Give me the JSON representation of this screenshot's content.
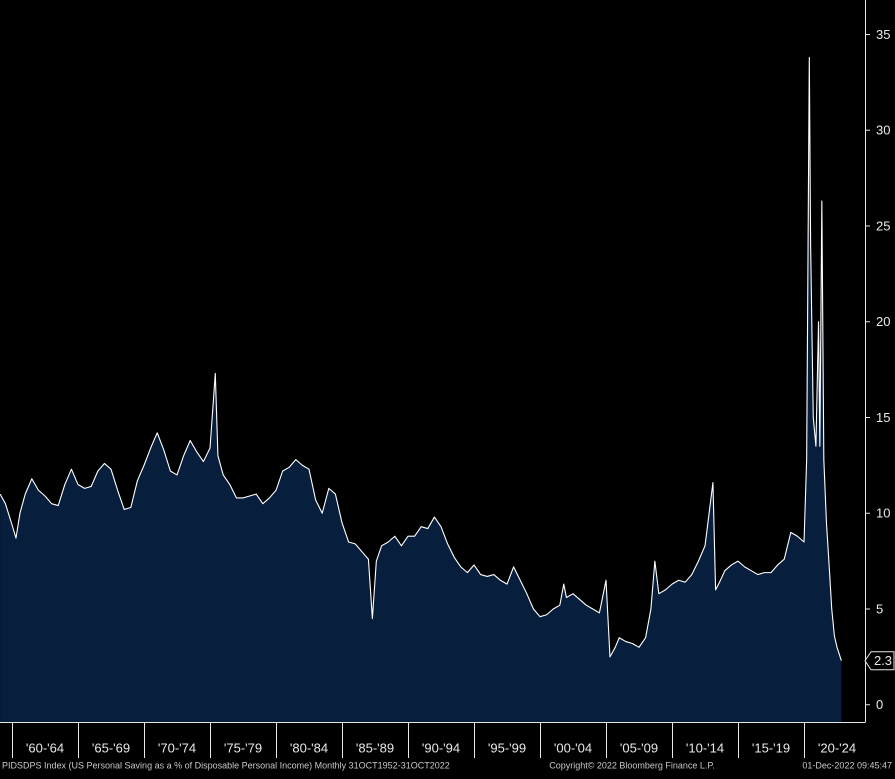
{
  "chart_data": {
    "type": "area",
    "x": [
      1959.1,
      1959.5,
      1960.0,
      1960.3,
      1960.6,
      1961.0,
      1961.5,
      1962.0,
      1962.5,
      1963.0,
      1963.5,
      1964.0,
      1964.5,
      1965.0,
      1965.5,
      1966.0,
      1966.5,
      1967.0,
      1967.5,
      1968.0,
      1968.5,
      1969.0,
      1969.5,
      1970.0,
      1970.5,
      1971.0,
      1971.5,
      1972.0,
      1972.5,
      1973.0,
      1973.5,
      1974.0,
      1974.5,
      1975.0,
      1975.4,
      1975.6,
      1976.0,
      1976.5,
      1977.0,
      1977.5,
      1978.0,
      1978.5,
      1979.0,
      1979.5,
      1980.0,
      1980.5,
      1981.0,
      1981.5,
      1982.0,
      1982.5,
      1983.0,
      1983.5,
      1984.0,
      1984.5,
      1985.0,
      1985.5,
      1986.0,
      1986.5,
      1987.0,
      1987.3,
      1987.6,
      1988.0,
      1988.5,
      1989.0,
      1989.5,
      1990.0,
      1990.5,
      1991.0,
      1991.5,
      1992.0,
      1992.5,
      1993.0,
      1993.5,
      1994.0,
      1994.5,
      1995.0,
      1995.5,
      1996.0,
      1996.5,
      1997.0,
      1997.5,
      1998.0,
      1998.5,
      1999.0,
      1999.5,
      2000.0,
      2000.5,
      2001.0,
      2001.5,
      2001.8,
      2002.0,
      2002.5,
      2003.0,
      2003.5,
      2004.0,
      2004.5,
      2005.0,
      2005.3,
      2005.7,
      2006.0,
      2006.5,
      2007.0,
      2007.5,
      2008.0,
      2008.4,
      2008.7,
      2009.0,
      2009.5,
      2010.0,
      2010.5,
      2011.0,
      2011.5,
      2012.0,
      2012.5,
      2013.1,
      2013.3,
      2013.6,
      2014.0,
      2014.5,
      2015.0,
      2015.5,
      2016.0,
      2016.5,
      2017.0,
      2017.5,
      2018.0,
      2018.5,
      2019.0,
      2019.5,
      2020.0,
      2020.2,
      2020.4,
      2020.5,
      2020.7,
      2020.9,
      2021.1,
      2021.2,
      2021.35,
      2021.5,
      2021.7,
      2021.9,
      2022.1,
      2022.3,
      2022.5,
      2022.83
    ],
    "values": [
      11.0,
      10.5,
      9.4,
      8.7,
      10.0,
      11.0,
      11.8,
      11.2,
      10.9,
      10.5,
      10.4,
      11.5,
      12.3,
      11.5,
      11.3,
      11.4,
      12.2,
      12.6,
      12.3,
      11.2,
      10.2,
      10.3,
      11.7,
      12.5,
      13.4,
      14.2,
      13.3,
      12.2,
      12.0,
      13.0,
      13.8,
      13.2,
      12.7,
      13.4,
      17.3,
      13.0,
      12.0,
      11.5,
      10.8,
      10.8,
      10.9,
      11.0,
      10.5,
      10.8,
      11.2,
      12.2,
      12.4,
      12.8,
      12.5,
      12.3,
      10.7,
      10.0,
      11.3,
      11.0,
      9.5,
      8.5,
      8.4,
      8.0,
      7.6,
      4.5,
      7.5,
      8.3,
      8.5,
      8.8,
      8.3,
      8.8,
      8.8,
      9.3,
      9.2,
      9.8,
      9.3,
      8.4,
      7.7,
      7.2,
      6.9,
      7.3,
      6.8,
      6.7,
      6.8,
      6.5,
      6.3,
      7.2,
      6.5,
      5.8,
      5.0,
      4.6,
      4.7,
      5.0,
      5.2,
      6.3,
      5.6,
      5.8,
      5.5,
      5.2,
      5.0,
      4.8,
      6.5,
      2.5,
      3.0,
      3.5,
      3.3,
      3.2,
      3.0,
      3.5,
      5.0,
      7.5,
      5.8,
      6.0,
      6.3,
      6.5,
      6.4,
      6.8,
      7.5,
      8.3,
      11.6,
      6.0,
      6.4,
      7.0,
      7.3,
      7.5,
      7.2,
      7.0,
      6.8,
      6.9,
      6.9,
      7.3,
      7.6,
      9.0,
      8.8,
      8.5,
      12.8,
      33.8,
      24.0,
      15.0,
      13.5,
      20.0,
      13.5,
      26.3,
      12.8,
      9.5,
      7.3,
      5.0,
      3.6,
      3.0,
      2.3
    ],
    "color": "#ffffff",
    "fill_color": "#071e3c",
    "last_value_label": "2.3",
    "xlim": [
      1959.09,
      2024.62
    ],
    "xticks": [
      {
        "value": 1960,
        "label": "'60-'64"
      },
      {
        "value": 1965,
        "label": "'65-'69"
      },
      {
        "value": 1970,
        "label": "'70-'74"
      },
      {
        "value": 1975,
        "label": "'75-'79"
      },
      {
        "value": 1980,
        "label": "'80-'84"
      },
      {
        "value": 1985,
        "label": "'85-'89"
      },
      {
        "value": 1990,
        "label": "'90-'94"
      },
      {
        "value": 1995,
        "label": "'95-'99"
      },
      {
        "value": 2000,
        "label": "'00-'04"
      },
      {
        "value": 2005,
        "label": "'05-'09"
      },
      {
        "value": 2010,
        "label": "'10-'14"
      },
      {
        "value": 2015,
        "label": "'15-'19"
      },
      {
        "value": 2020,
        "label": "'20-'24"
      }
    ],
    "ylim": [
      -0.9,
      36.8
    ],
    "yticks": [
      0,
      5,
      10,
      15,
      20,
      25,
      30,
      35
    ],
    "footer_left": "PIDSDPS Index (US Personal Saving as a % of Disposable Personal Income)  Monthly 31OCT1952-31OCT2022",
    "footer_center": "Copyright© 2022 Bloomberg Finance L.P.",
    "footer_right": "01-Dec-2022 09:45:47"
  }
}
